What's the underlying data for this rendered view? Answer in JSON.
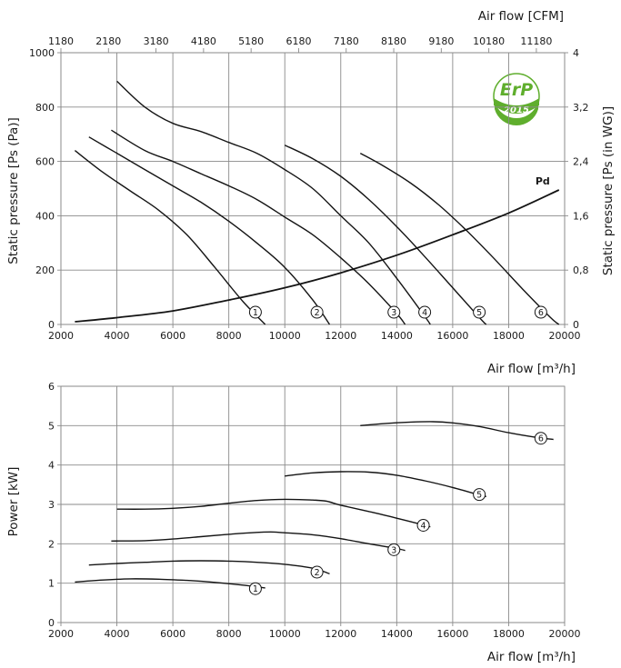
{
  "chart_data": [
    {
      "type": "line",
      "xlabel": "Air flow [m³/h]",
      "ylabel": "Static pressure [Ps (Pa)]",
      "top_axis_label": "Air flow [CFM]",
      "right_axis_label": "Static pressure [Ps (in WG)]",
      "xlim": [
        2000,
        20000
      ],
      "ylim": [
        0,
        1000
      ],
      "x_ticks": [
        "2000",
        "4000",
        "6000",
        "8000",
        "10000",
        "12000",
        "14000",
        "16000",
        "18000",
        "20000"
      ],
      "y_ticks": [
        "0",
        "200",
        "400",
        "600",
        "800",
        "1000"
      ],
      "top_ticks": [
        "1180",
        "2180",
        "3180",
        "4180",
        "5180",
        "6180",
        "7180",
        "8180",
        "9180",
        "10180",
        "11180"
      ],
      "right_ticks": [
        "0",
        "0,8",
        "1,6",
        "2,4",
        "3,2",
        "4"
      ],
      "grid": true,
      "badge": {
        "text": "ErP",
        "year": "2015",
        "color": "#5fae2d"
      },
      "series": [
        {
          "name": "1",
          "x": [
            2500,
            3500,
            4500,
            5500,
            6500,
            7500,
            8500,
            9300
          ],
          "y": [
            640,
            560,
            490,
            420,
            330,
            210,
            85,
            0
          ]
        },
        {
          "name": "2",
          "x": [
            3000,
            4000,
            5000,
            6000,
            7000,
            8000,
            9000,
            10000,
            11000,
            11600
          ],
          "y": [
            690,
            630,
            570,
            510,
            450,
            380,
            300,
            210,
            90,
            0
          ]
        },
        {
          "name": "3",
          "x": [
            3800,
            5000,
            6000,
            7000,
            8000,
            9000,
            10000,
            11000,
            12000,
            13000,
            14000,
            14300
          ],
          "y": [
            715,
            640,
            600,
            555,
            510,
            460,
            395,
            330,
            245,
            150,
            40,
            0
          ]
        },
        {
          "name": "4",
          "x": [
            4000,
            5000,
            6000,
            7000,
            8000,
            9000,
            10000,
            11000,
            12000,
            13000,
            14000,
            15000,
            15200
          ],
          "y": [
            895,
            800,
            740,
            710,
            670,
            630,
            570,
            500,
            400,
            300,
            170,
            30,
            0
          ]
        },
        {
          "name": "5",
          "x": [
            10000,
            11000,
            12000,
            13000,
            14000,
            15000,
            16000,
            17000,
            17200
          ],
          "y": [
            660,
            610,
            545,
            460,
            360,
            250,
            135,
            20,
            0
          ]
        },
        {
          "name": "6",
          "x": [
            12700,
            13500,
            14500,
            15500,
            16500,
            17500,
            18500,
            19500,
            19800
          ],
          "y": [
            630,
            585,
            520,
            440,
            345,
            240,
            130,
            25,
            0
          ]
        },
        {
          "name": "Pd",
          "x": [
            2500,
            4000,
            6000,
            8000,
            10000,
            12000,
            14000,
            16000,
            18000,
            19800
          ],
          "y": [
            10,
            25,
            50,
            90,
            135,
            190,
            255,
            330,
            410,
            495
          ]
        }
      ]
    },
    {
      "type": "line",
      "xlabel": "Air flow [m³/h]",
      "ylabel": "Power [kW]",
      "xlim": [
        2000,
        20000
      ],
      "ylim": [
        0,
        6
      ],
      "x_ticks": [
        "2000",
        "4000",
        "6000",
        "8000",
        "10000",
        "12000",
        "14000",
        "16000",
        "18000",
        "20000"
      ],
      "y_ticks": [
        "0",
        "1",
        "2",
        "3",
        "4",
        "5",
        "6"
      ],
      "grid": true,
      "series": [
        {
          "name": "1",
          "x": [
            2500,
            3500,
            4500,
            5500,
            6500,
            7500,
            8500,
            9300
          ],
          "y": [
            1.03,
            1.08,
            1.11,
            1.1,
            1.07,
            1.02,
            0.95,
            0.88
          ]
        },
        {
          "name": "2",
          "x": [
            3000,
            4000,
            5000,
            6000,
            7000,
            8000,
            9000,
            10000,
            11000,
            11600
          ],
          "y": [
            1.46,
            1.5,
            1.53,
            1.56,
            1.57,
            1.56,
            1.53,
            1.48,
            1.38,
            1.24
          ]
        },
        {
          "name": "3",
          "x": [
            3800,
            5000,
            6000,
            7000,
            8000,
            9000,
            9500,
            10000,
            11000,
            12000,
            13000,
            14000,
            14300
          ],
          "y": [
            2.07,
            2.08,
            2.12,
            2.18,
            2.24,
            2.29,
            2.3,
            2.28,
            2.23,
            2.13,
            2.0,
            1.88,
            1.83
          ]
        },
        {
          "name": "4",
          "x": [
            4000,
            5000,
            6000,
            7000,
            8000,
            9000,
            10000,
            11000,
            11500,
            12000,
            13000,
            14000,
            15000,
            15200
          ],
          "y": [
            2.88,
            2.88,
            2.9,
            2.95,
            3.03,
            3.1,
            3.13,
            3.11,
            3.08,
            2.98,
            2.82,
            2.65,
            2.47,
            2.43
          ]
        },
        {
          "name": "5",
          "x": [
            10000,
            11000,
            12000,
            13000,
            14000,
            15000,
            16000,
            17000,
            17200
          ],
          "y": [
            3.72,
            3.8,
            3.83,
            3.82,
            3.74,
            3.6,
            3.43,
            3.23,
            3.2
          ]
        },
        {
          "name": "6",
          "x": [
            12700,
            13500,
            14500,
            15300,
            16000,
            17000,
            18000,
            19000,
            19600
          ],
          "y": [
            5.0,
            5.05,
            5.09,
            5.1,
            5.07,
            4.97,
            4.82,
            4.7,
            4.65
          ]
        }
      ]
    }
  ]
}
